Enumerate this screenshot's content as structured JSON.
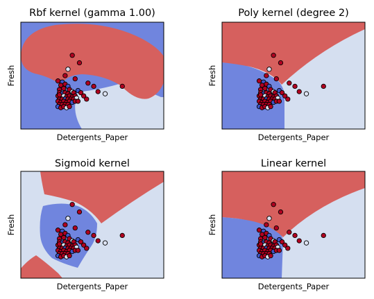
{
  "colors": {
    "blue_region": "#7085de",
    "light_region": "#d5dff0",
    "red_region": "#d6605e",
    "class_red": "#b00020",
    "class_blue": "#3e54c8",
    "class_light": "#dde3f3",
    "edge": "#000000"
  },
  "chart_data": [
    {
      "type": "scatter",
      "title": "Rbf kernel (gamma 1.00)",
      "xlabel": "Detergents_Paper",
      "ylabel": "Fresh",
      "ticks_visible": false,
      "grid": false,
      "decision_regions": [
        "blue",
        "red",
        "light"
      ]
    },
    {
      "type": "scatter",
      "title": "Poly kernel (degree 2)",
      "xlabel": "Detergents_Paper",
      "ylabel": "Fresh",
      "ticks_visible": false,
      "grid": false,
      "decision_regions": [
        "red",
        "blue",
        "light"
      ]
    },
    {
      "type": "scatter",
      "title": "Sigmoid kernel",
      "xlabel": "Detergents_Paper",
      "ylabel": "Fresh",
      "ticks_visible": false,
      "grid": false,
      "decision_regions": [
        "red",
        "blue",
        "light"
      ]
    },
    {
      "type": "scatter",
      "title": "Linear kernel",
      "xlabel": "Detergents_Paper",
      "ylabel": "Fresh",
      "ticks_visible": false,
      "grid": false,
      "decision_regions": [
        "red",
        "blue",
        "light"
      ]
    }
  ],
  "points": [
    {
      "x": 0.36,
      "y": 0.69,
      "cls": "red"
    },
    {
      "x": 0.33,
      "y": 0.56,
      "cls": "light"
    },
    {
      "x": 0.41,
      "y": 0.62,
      "cls": "red"
    },
    {
      "x": 0.38,
      "y": 0.47,
      "cls": "red"
    },
    {
      "x": 0.31,
      "y": 0.5,
      "cls": "red"
    },
    {
      "x": 0.47,
      "y": 0.43,
      "cls": "red"
    },
    {
      "x": 0.51,
      "y": 0.4,
      "cls": "red"
    },
    {
      "x": 0.54,
      "y": 0.35,
      "cls": "red"
    },
    {
      "x": 0.59,
      "y": 0.33,
      "cls": "light"
    },
    {
      "x": 0.71,
      "y": 0.4,
      "cls": "red"
    },
    {
      "x": 0.26,
      "y": 0.45,
      "cls": "red"
    },
    {
      "x": 0.29,
      "y": 0.44,
      "cls": "blue"
    },
    {
      "x": 0.28,
      "y": 0.41,
      "cls": "red"
    },
    {
      "x": 0.31,
      "y": 0.42,
      "cls": "red"
    },
    {
      "x": 0.33,
      "y": 0.4,
      "cls": "blue"
    },
    {
      "x": 0.27,
      "y": 0.37,
      "cls": "red"
    },
    {
      "x": 0.3,
      "y": 0.38,
      "cls": "red"
    },
    {
      "x": 0.34,
      "y": 0.37,
      "cls": "red"
    },
    {
      "x": 0.36,
      "y": 0.35,
      "cls": "light"
    },
    {
      "x": 0.27,
      "y": 0.34,
      "cls": "red"
    },
    {
      "x": 0.29,
      "y": 0.33,
      "cls": "blue"
    },
    {
      "x": 0.31,
      "y": 0.34,
      "cls": "red"
    },
    {
      "x": 0.33,
      "y": 0.33,
      "cls": "red"
    },
    {
      "x": 0.37,
      "y": 0.34,
      "cls": "red"
    },
    {
      "x": 0.4,
      "y": 0.36,
      "cls": "blue"
    },
    {
      "x": 0.42,
      "y": 0.34,
      "cls": "red"
    },
    {
      "x": 0.26,
      "y": 0.31,
      "cls": "red"
    },
    {
      "x": 0.28,
      "y": 0.3,
      "cls": "red"
    },
    {
      "x": 0.3,
      "y": 0.31,
      "cls": "light"
    },
    {
      "x": 0.32,
      "y": 0.3,
      "cls": "red"
    },
    {
      "x": 0.34,
      "y": 0.31,
      "cls": "red"
    },
    {
      "x": 0.36,
      "y": 0.3,
      "cls": "red"
    },
    {
      "x": 0.38,
      "y": 0.31,
      "cls": "red"
    },
    {
      "x": 0.27,
      "y": 0.28,
      "cls": "red"
    },
    {
      "x": 0.29,
      "y": 0.28,
      "cls": "red"
    },
    {
      "x": 0.31,
      "y": 0.28,
      "cls": "blue"
    },
    {
      "x": 0.33,
      "y": 0.28,
      "cls": "red"
    },
    {
      "x": 0.35,
      "y": 0.28,
      "cls": "red"
    },
    {
      "x": 0.37,
      "y": 0.28,
      "cls": "red"
    },
    {
      "x": 0.39,
      "y": 0.29,
      "cls": "light"
    },
    {
      "x": 0.26,
      "y": 0.26,
      "cls": "red"
    },
    {
      "x": 0.28,
      "y": 0.25,
      "cls": "red"
    },
    {
      "x": 0.3,
      "y": 0.26,
      "cls": "red"
    },
    {
      "x": 0.32,
      "y": 0.25,
      "cls": "red"
    },
    {
      "x": 0.34,
      "y": 0.26,
      "cls": "red"
    },
    {
      "x": 0.36,
      "y": 0.25,
      "cls": "blue"
    },
    {
      "x": 0.38,
      "y": 0.26,
      "cls": "red"
    },
    {
      "x": 0.4,
      "y": 0.26,
      "cls": "red"
    },
    {
      "x": 0.27,
      "y": 0.23,
      "cls": "red"
    },
    {
      "x": 0.29,
      "y": 0.23,
      "cls": "red"
    },
    {
      "x": 0.31,
      "y": 0.23,
      "cls": "red"
    },
    {
      "x": 0.33,
      "y": 0.23,
      "cls": "red"
    },
    {
      "x": 0.26,
      "y": 0.21,
      "cls": "blue"
    },
    {
      "x": 0.28,
      "y": 0.2,
      "cls": "red"
    },
    {
      "x": 0.3,
      "y": 0.21,
      "cls": "red"
    },
    {
      "x": 0.32,
      "y": 0.2,
      "cls": "light"
    },
    {
      "x": 0.34,
      "y": 0.21,
      "cls": "red"
    },
    {
      "x": 0.27,
      "y": 0.32,
      "cls": "red"
    },
    {
      "x": 0.44,
      "y": 0.31,
      "cls": "red"
    },
    {
      "x": 0.46,
      "y": 0.28,
      "cls": "red"
    }
  ]
}
